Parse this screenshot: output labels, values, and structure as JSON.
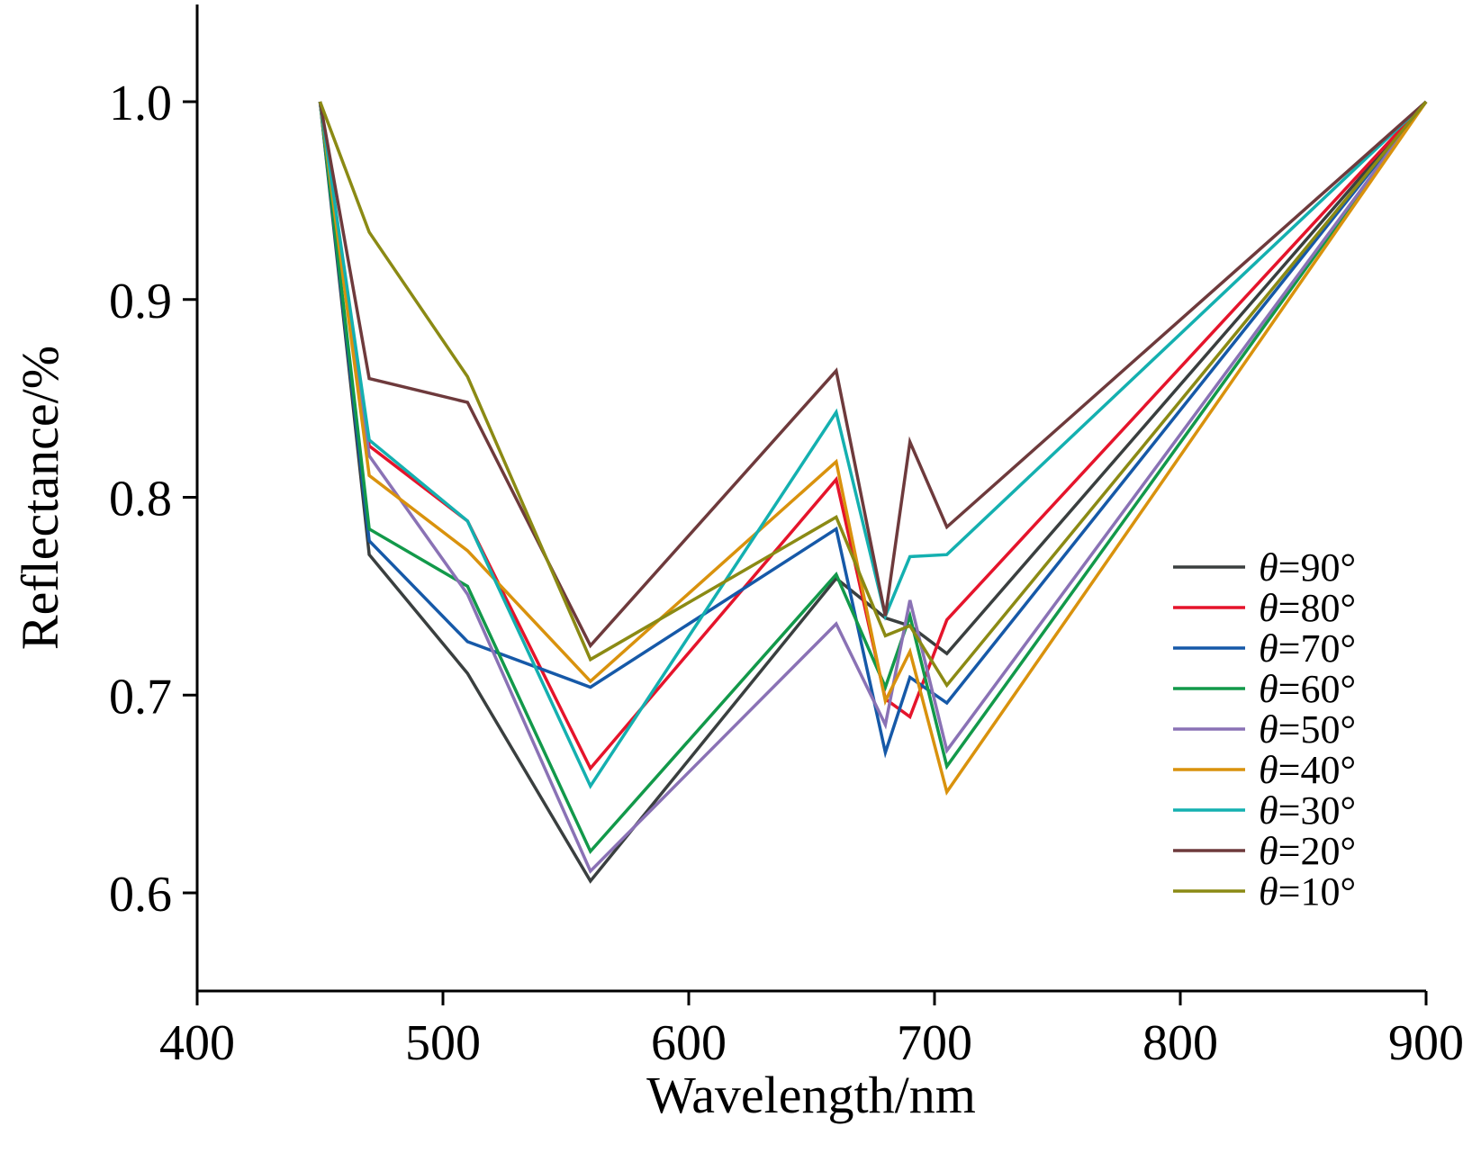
{
  "chart_data": {
    "type": "line",
    "xlabel": "Wavelength/nm",
    "ylabel": "Reflectance/%",
    "xlim": [
      400,
      900
    ],
    "ylim": [
      0.55,
      1.05
    ],
    "xticks": [
      400,
      500,
      600,
      700,
      800,
      900
    ],
    "xtick_labels": [
      "400",
      "500",
      "600",
      "700",
      "800",
      "900"
    ],
    "yticks": [
      0.6,
      0.7,
      0.8,
      0.9,
      1.0
    ],
    "ytick_labels": [
      "0.6",
      "0.7",
      "0.8",
      "0.9",
      "1.0"
    ],
    "grid": false,
    "legend_position": "right",
    "x": [
      450,
      470,
      510,
      560,
      660,
      680,
      690,
      705,
      900
    ],
    "series": [
      {
        "name": "=90°",
        "symbol": "θ",
        "color": "#3a3f3f",
        "values": [
          1.0,
          0.771,
          0.711,
          0.606,
          0.759,
          0.739,
          0.735,
          0.721,
          1.0
        ]
      },
      {
        "name": "=80°",
        "symbol": "θ",
        "color": "#e5142b",
        "values": [
          1.0,
          0.826,
          0.788,
          0.663,
          0.809,
          0.698,
          0.689,
          0.738,
          1.0
        ]
      },
      {
        "name": "=70°",
        "symbol": "θ",
        "color": "#1659a8",
        "values": [
          1.0,
          0.778,
          0.727,
          0.704,
          0.784,
          0.671,
          0.709,
          0.696,
          1.0
        ]
      },
      {
        "name": "=60°",
        "symbol": "θ",
        "color": "#12994a",
        "values": [
          1.0,
          0.784,
          0.755,
          0.621,
          0.761,
          0.704,
          0.74,
          0.664,
          1.0
        ]
      },
      {
        "name": "=50°",
        "symbol": "θ",
        "color": "#8a72b5",
        "values": [
          1.0,
          0.821,
          0.751,
          0.611,
          0.736,
          0.685,
          0.748,
          0.672,
          1.0
        ]
      },
      {
        "name": "=40°",
        "symbol": "θ",
        "color": "#d9920d",
        "values": [
          1.0,
          0.811,
          0.773,
          0.707,
          0.818,
          0.697,
          0.722,
          0.651,
          1.0
        ]
      },
      {
        "name": "=30°",
        "symbol": "θ",
        "color": "#14b0b0",
        "values": [
          1.0,
          0.829,
          0.788,
          0.654,
          0.843,
          0.74,
          0.77,
          0.771,
          1.0
        ]
      },
      {
        "name": "=20°",
        "symbol": "θ",
        "color": "#6e3a3c",
        "values": [
          1.0,
          0.86,
          0.848,
          0.725,
          0.864,
          0.74,
          0.828,
          0.785,
          1.0
        ]
      },
      {
        "name": "=10°",
        "symbol": "θ",
        "color": "#8b8a14",
        "values": [
          1.0,
          0.934,
          0.861,
          0.718,
          0.79,
          0.73,
          0.735,
          0.705,
          1.0
        ]
      }
    ]
  }
}
